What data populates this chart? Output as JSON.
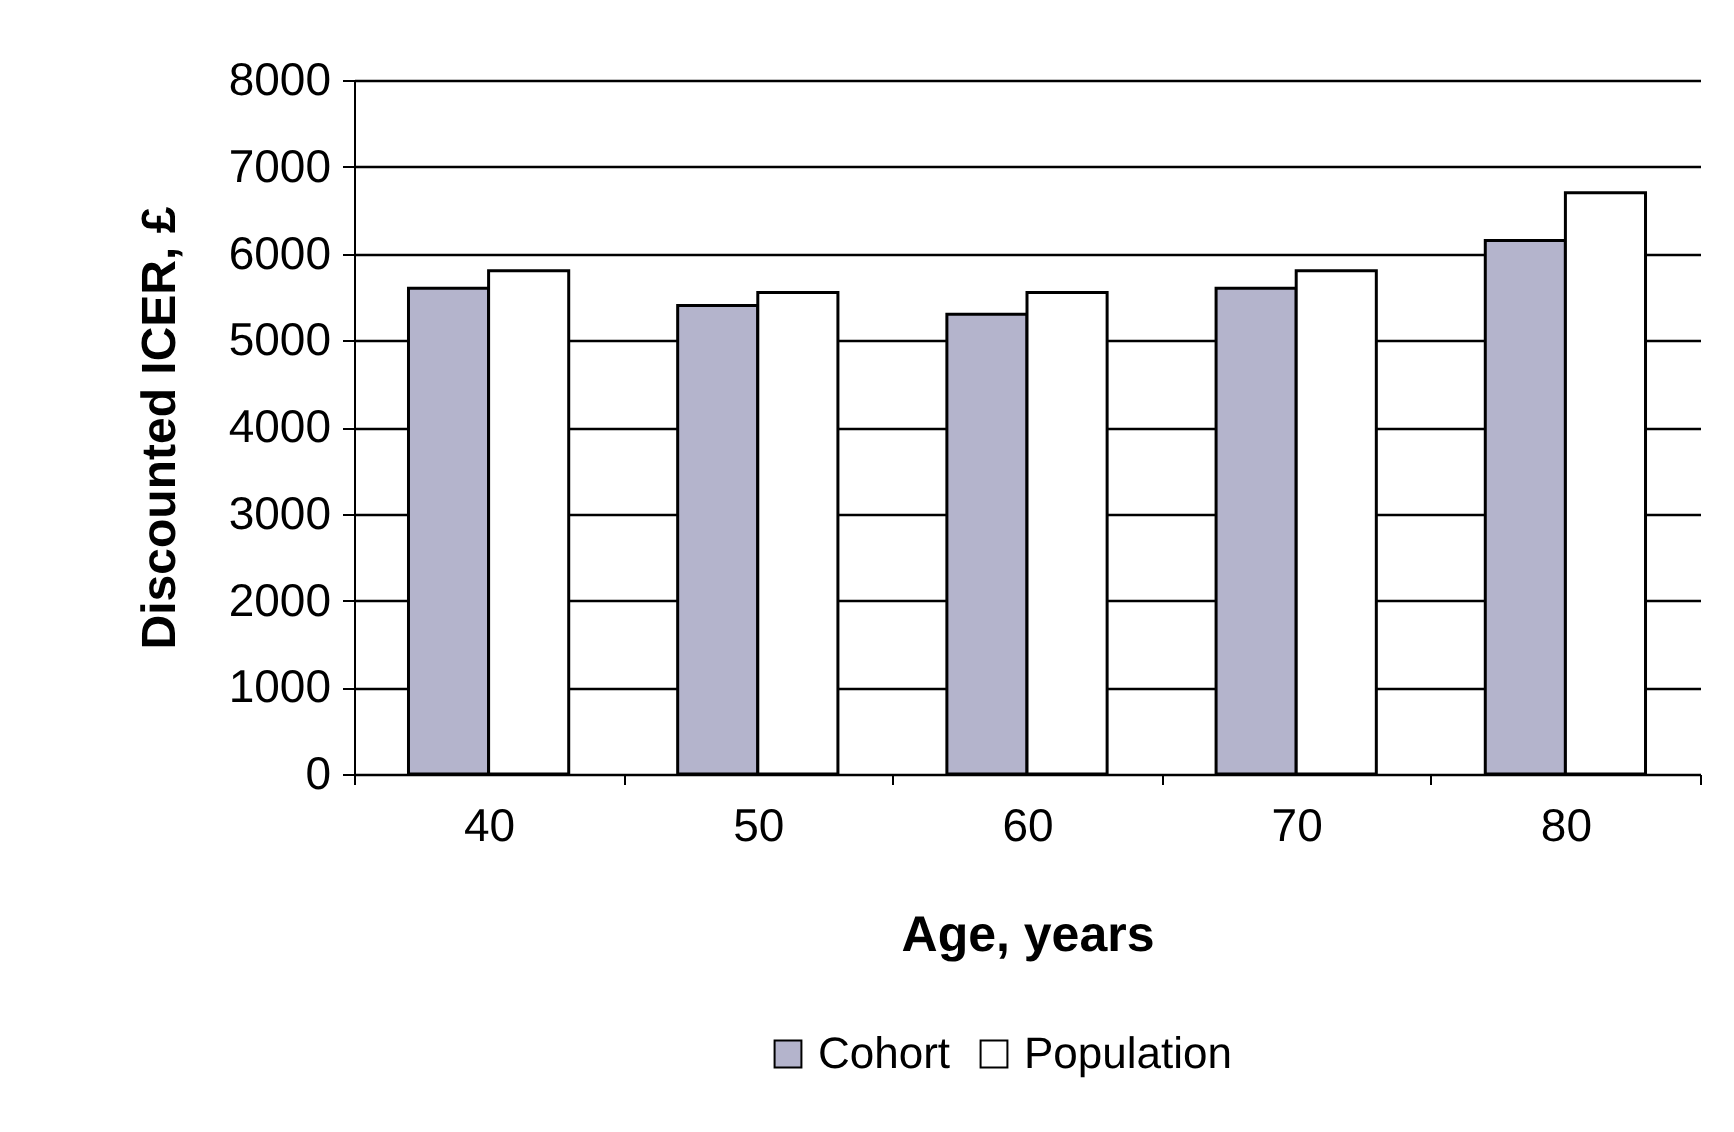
{
  "chart_data": {
    "type": "bar",
    "xlabel": "Age, years",
    "ylabel": "Discounted ICER, £",
    "categories": [
      "40",
      "50",
      "60",
      "70",
      "80"
    ],
    "series": [
      {
        "name": "Cohort",
        "color": "#b4b4cc",
        "values": [
          5600,
          5400,
          5300,
          5600,
          6150
        ]
      },
      {
        "name": "Population",
        "color": "#ffffff",
        "values": [
          5800,
          5550,
          5550,
          5800,
          6700
        ]
      }
    ],
    "ylim": [
      0,
      8000
    ],
    "yticks": [
      0,
      1000,
      2000,
      3000,
      4000,
      5000,
      6000,
      7000,
      8000
    ],
    "grid": "y",
    "legend": "bottom"
  }
}
